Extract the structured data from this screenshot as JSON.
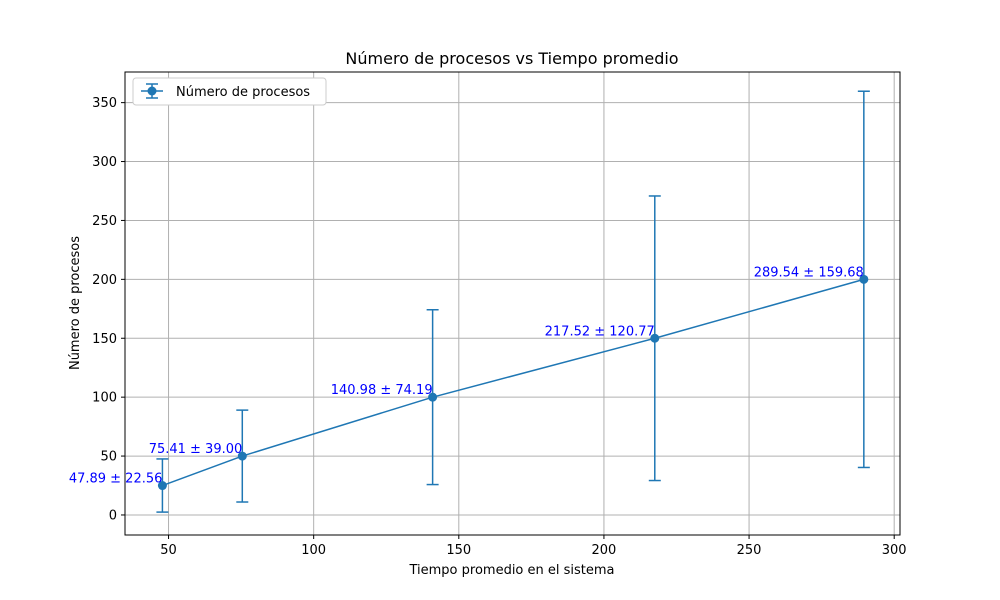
{
  "chart_data": {
    "type": "line",
    "title": "Número de procesos vs Tiempo promedio",
    "xlabel": "Tiempo promedio en el sistema",
    "ylabel": "Número de procesos",
    "xlim": [
      35,
      302
    ],
    "ylim": [
      -17,
      376
    ],
    "xticks": [
      50,
      100,
      150,
      200,
      250,
      300
    ],
    "yticks": [
      0,
      50,
      100,
      150,
      200,
      250,
      300,
      350
    ],
    "grid": true,
    "legend_position": "top-left",
    "series": [
      {
        "name": "Número de procesos",
        "color": "#1f77b4",
        "x": [
          47.89,
          75.41,
          140.98,
          217.52,
          289.54
        ],
        "y": [
          25,
          50,
          100,
          150,
          200
        ],
        "y_error": [
          22.56,
          39.0,
          74.19,
          120.77,
          159.68
        ]
      }
    ],
    "annotations": [
      {
        "text": "47.89 ± 22.56",
        "x": 47.89,
        "y": 25
      },
      {
        "text": "75.41 ± 39.00",
        "x": 75.41,
        "y": 50
      },
      {
        "text": "140.98 ± 74.19",
        "x": 140.98,
        "y": 100
      },
      {
        "text": "217.52 ± 120.77",
        "x": 217.52,
        "y": 150
      },
      {
        "text": "289.54 ± 159.68",
        "x": 289.54,
        "y": 200
      }
    ],
    "annotation_color": "#0000ff"
  }
}
